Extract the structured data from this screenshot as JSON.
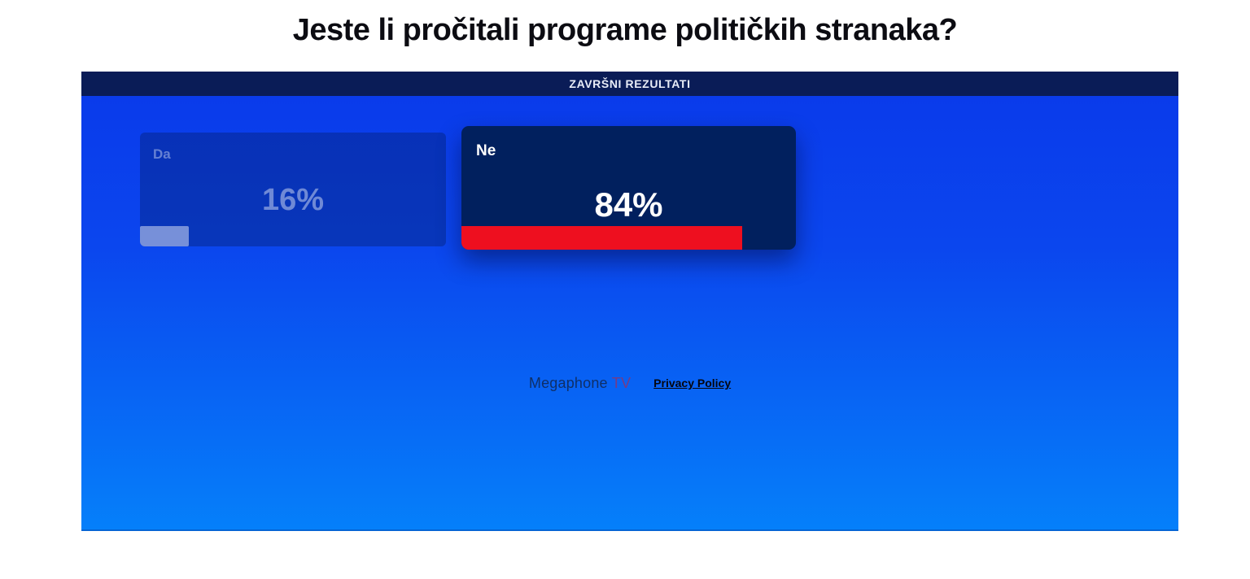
{
  "page": {
    "title": "Jeste li pročitali programe političkih stranaka?"
  },
  "widget": {
    "header": "ZAVRŠNI REZULTATI",
    "options": [
      {
        "label": "Da",
        "percent": "16%",
        "value": 16,
        "winner": false
      },
      {
        "label": "Ne",
        "percent": "84%",
        "value": 84,
        "winner": true
      }
    ],
    "footer": {
      "brand": "Megaphone",
      "brand_tv": "TV",
      "privacy": "Privacy Policy"
    },
    "colors": {
      "panel_gradient_top": "#0a39ea",
      "panel_gradient_bottom": "#0580fa",
      "header_bar": "#0a1c57",
      "winner_card": "#01205e",
      "winner_bar_red": "#ee0f1f",
      "loser_bar": "rgba(255,255,255,0.45)"
    }
  },
  "chart_data": {
    "type": "bar",
    "title": "Jeste li pročitali programe političkih stranaka?",
    "subtitle": "ZAVRŠNI REZULTATI",
    "categories": [
      "Da",
      "Ne"
    ],
    "values": [
      16,
      84
    ],
    "unit": "%",
    "ylim": [
      0,
      100
    ],
    "legend": "none",
    "grid": false
  }
}
